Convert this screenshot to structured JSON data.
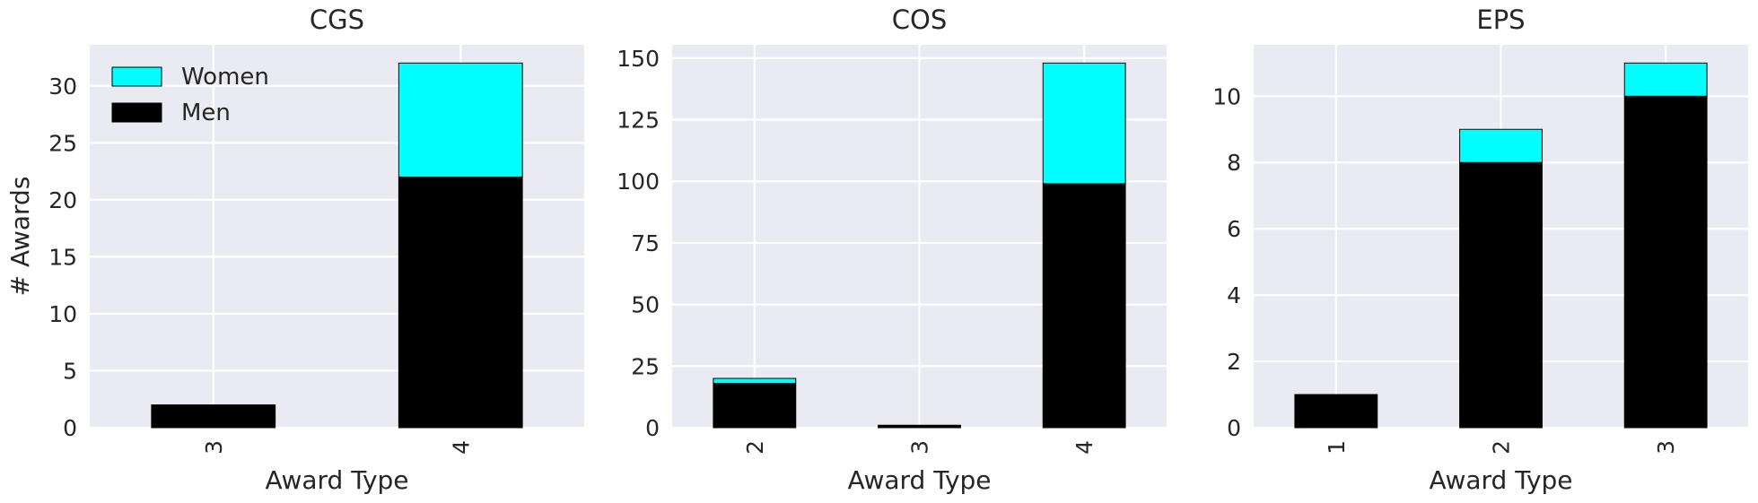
{
  "figure": {
    "shared_ylabel": "# Awards"
  },
  "chart_data": [
    {
      "type": "bar",
      "stacked": true,
      "title": "CGS",
      "xlabel": "Award Type",
      "ylabel": "# Awards",
      "categories": [
        "3",
        "4"
      ],
      "series": [
        {
          "name": "Men",
          "color": "#000000",
          "values": [
            2,
            22
          ]
        },
        {
          "name": "Women",
          "color": "#00ffff",
          "values": [
            0,
            10
          ]
        }
      ],
      "ylim": [
        0,
        33.6
      ],
      "yticks": [
        0,
        5,
        10,
        15,
        20,
        25,
        30
      ],
      "grid": true,
      "legend": "upper-left"
    },
    {
      "type": "bar",
      "stacked": true,
      "title": "COS",
      "xlabel": "Award Type",
      "ylabel": "",
      "categories": [
        "2",
        "3",
        "4"
      ],
      "series": [
        {
          "name": "Men",
          "color": "#000000",
          "values": [
            18,
            1,
            99
          ]
        },
        {
          "name": "Women",
          "color": "#00ffff",
          "values": [
            2,
            0,
            49
          ]
        }
      ],
      "ylim": [
        0,
        155.4
      ],
      "yticks": [
        0,
        25,
        50,
        75,
        100,
        125,
        150
      ],
      "grid": true
    },
    {
      "type": "bar",
      "stacked": true,
      "title": "EPS",
      "xlabel": "Award Type",
      "ylabel": "",
      "categories": [
        "1",
        "2",
        "3"
      ],
      "series": [
        {
          "name": "Men",
          "color": "#000000",
          "values": [
            1,
            8,
            10
          ]
        },
        {
          "name": "Women",
          "color": "#00ffff",
          "values": [
            0,
            1,
            1
          ]
        }
      ],
      "ylim": [
        0,
        11.55
      ],
      "yticks": [
        0,
        2,
        4,
        6,
        8,
        10
      ],
      "grid": true
    }
  ],
  "legend": {
    "items": [
      {
        "label": "Women",
        "color": "#00ffff"
      },
      {
        "label": "Men",
        "color": "#000000"
      }
    ]
  },
  "colors": {
    "plot_background": "#eaeaf2",
    "grid": "#ffffff",
    "text": "#262626"
  }
}
